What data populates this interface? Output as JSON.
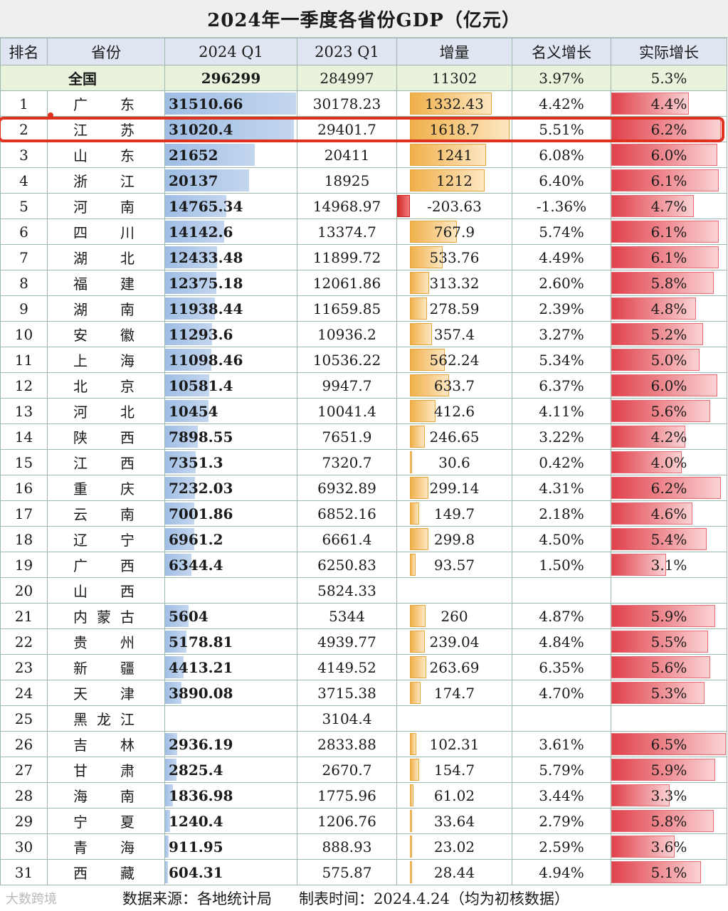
{
  "title": "2024年一季度各省份GDP（亿元）",
  "headers": [
    "排名",
    "省份",
    "2024 Q1",
    "2023 Q1",
    "增量",
    "名义增长",
    "实际增长"
  ],
  "national": {
    "name": "全国",
    "q2024": "296299",
    "q2023": "284997",
    "delta": "11302",
    "nominal": "3.97%",
    "real": "5.3%"
  },
  "rows": [
    {
      "rank": "1",
      "prov": "广东",
      "q2024": "31510.66",
      "q2023": "30178.23",
      "delta": "1332.43",
      "nominal": "4.42%",
      "real": "4.4%",
      "v": 31510.66,
      "d": 1332.43,
      "r": 4.4
    },
    {
      "rank": "2",
      "prov": "江苏",
      "q2024": "31020.4",
      "q2023": "29401.7",
      "delta": "1618.7",
      "nominal": "5.51%",
      "real": "6.2%",
      "v": 31020.4,
      "d": 1618.7,
      "r": 6.2
    },
    {
      "rank": "3",
      "prov": "山东",
      "q2024": "21652",
      "q2023": "20411",
      "delta": "1241",
      "nominal": "6.08%",
      "real": "6.0%",
      "v": 21652,
      "d": 1241,
      "r": 6.0
    },
    {
      "rank": "4",
      "prov": "浙江",
      "q2024": "20137",
      "q2023": "18925",
      "delta": "1212",
      "nominal": "6.40%",
      "real": "6.1%",
      "v": 20137,
      "d": 1212,
      "r": 6.1
    },
    {
      "rank": "5",
      "prov": "河南",
      "q2024": "14765.34",
      "q2023": "14968.97",
      "delta": "-203.63",
      "nominal": "-1.36%",
      "real": "4.7%",
      "v": 14765.34,
      "d": -203.63,
      "r": 4.7
    },
    {
      "rank": "6",
      "prov": "四川",
      "q2024": "14142.6",
      "q2023": "13374.7",
      "delta": "767.9",
      "nominal": "5.74%",
      "real": "6.1%",
      "v": 14142.6,
      "d": 767.9,
      "r": 6.1
    },
    {
      "rank": "7",
      "prov": "湖北",
      "q2024": "12433.48",
      "q2023": "11899.72",
      "delta": "533.76",
      "nominal": "4.49%",
      "real": "6.1%",
      "v": 12433.48,
      "d": 533.76,
      "r": 6.1
    },
    {
      "rank": "8",
      "prov": "福建",
      "q2024": "12375.18",
      "q2023": "12061.86",
      "delta": "313.32",
      "nominal": "2.60%",
      "real": "5.8%",
      "v": 12375.18,
      "d": 313.32,
      "r": 5.8
    },
    {
      "rank": "9",
      "prov": "湖南",
      "q2024": "11938.44",
      "q2023": "11659.85",
      "delta": "278.59",
      "nominal": "2.39%",
      "real": "4.8%",
      "v": 11938.44,
      "d": 278.59,
      "r": 4.8
    },
    {
      "rank": "10",
      "prov": "安徽",
      "q2024": "11293.6",
      "q2023": "10936.2",
      "delta": "357.4",
      "nominal": "3.27%",
      "real": "5.2%",
      "v": 11293.6,
      "d": 357.4,
      "r": 5.2
    },
    {
      "rank": "11",
      "prov": "上海",
      "q2024": "11098.46",
      "q2023": "10536.22",
      "delta": "562.24",
      "nominal": "5.34%",
      "real": "5.0%",
      "v": 11098.46,
      "d": 562.24,
      "r": 5.0
    },
    {
      "rank": "12",
      "prov": "北京",
      "q2024": "10581.4",
      "q2023": "9947.7",
      "delta": "633.7",
      "nominal": "6.37%",
      "real": "6.0%",
      "v": 10581.4,
      "d": 633.7,
      "r": 6.0
    },
    {
      "rank": "13",
      "prov": "河北",
      "q2024": "10454",
      "q2023": "10041.4",
      "delta": "412.6",
      "nominal": "4.11%",
      "real": "5.6%",
      "v": 10454,
      "d": 412.6,
      "r": 5.6
    },
    {
      "rank": "14",
      "prov": "陕西",
      "q2024": "7898.55",
      "q2023": "7651.9",
      "delta": "246.65",
      "nominal": "3.22%",
      "real": "4.2%",
      "v": 7898.55,
      "d": 246.65,
      "r": 4.2
    },
    {
      "rank": "15",
      "prov": "江西",
      "q2024": "7351.3",
      "q2023": "7320.7",
      "delta": "30.6",
      "nominal": "0.42%",
      "real": "4.0%",
      "v": 7351.3,
      "d": 30.6,
      "r": 4.0
    },
    {
      "rank": "16",
      "prov": "重庆",
      "q2024": "7232.03",
      "q2023": "6932.89",
      "delta": "299.14",
      "nominal": "4.31%",
      "real": "6.2%",
      "v": 7232.03,
      "d": 299.14,
      "r": 6.2
    },
    {
      "rank": "17",
      "prov": "云南",
      "q2024": "7001.86",
      "q2023": "6852.16",
      "delta": "149.7",
      "nominal": "2.18%",
      "real": "4.6%",
      "v": 7001.86,
      "d": 149.7,
      "r": 4.6
    },
    {
      "rank": "18",
      "prov": "辽宁",
      "q2024": "6961.2",
      "q2023": "6661.4",
      "delta": "299.8",
      "nominal": "4.50%",
      "real": "5.4%",
      "v": 6961.2,
      "d": 299.8,
      "r": 5.4
    },
    {
      "rank": "19",
      "prov": "广西",
      "q2024": "6344.4",
      "q2023": "6250.83",
      "delta": "93.57",
      "nominal": "1.50%",
      "real": "3.1%",
      "v": 6344.4,
      "d": 93.57,
      "r": 3.1
    },
    {
      "rank": "20",
      "prov": "山西",
      "q2024": "",
      "q2023": "5824.33",
      "delta": "",
      "nominal": "",
      "real": "",
      "v": null,
      "d": null,
      "r": null
    },
    {
      "rank": "21",
      "prov": "内蒙古",
      "q2024": "5604",
      "q2023": "5344",
      "delta": "260",
      "nominal": "4.87%",
      "real": "5.9%",
      "v": 5604,
      "d": 260,
      "r": 5.9
    },
    {
      "rank": "22",
      "prov": "贵州",
      "q2024": "5178.81",
      "q2023": "4939.77",
      "delta": "239.04",
      "nominal": "4.84%",
      "real": "5.5%",
      "v": 5178.81,
      "d": 239.04,
      "r": 5.5
    },
    {
      "rank": "23",
      "prov": "新疆",
      "q2024": "4413.21",
      "q2023": "4149.52",
      "delta": "263.69",
      "nominal": "6.35%",
      "real": "5.6%",
      "v": 4413.21,
      "d": 263.69,
      "r": 5.6
    },
    {
      "rank": "24",
      "prov": "天津",
      "q2024": "3890.08",
      "q2023": "3715.38",
      "delta": "174.7",
      "nominal": "4.70%",
      "real": "5.3%",
      "v": 3890.08,
      "d": 174.7,
      "r": 5.3
    },
    {
      "rank": "25",
      "prov": "黑龙江",
      "q2024": "",
      "q2023": "3104.4",
      "delta": "",
      "nominal": "",
      "real": "",
      "v": null,
      "d": null,
      "r": null
    },
    {
      "rank": "26",
      "prov": "吉林",
      "q2024": "2936.19",
      "q2023": "2833.88",
      "delta": "102.31",
      "nominal": "3.61%",
      "real": "6.5%",
      "v": 2936.19,
      "d": 102.31,
      "r": 6.5
    },
    {
      "rank": "27",
      "prov": "甘肃",
      "q2024": "2825.4",
      "q2023": "2670.7",
      "delta": "154.7",
      "nominal": "5.79%",
      "real": "5.9%",
      "v": 2825.4,
      "d": 154.7,
      "r": 5.9
    },
    {
      "rank": "28",
      "prov": "海南",
      "q2024": "1836.98",
      "q2023": "1775.96",
      "delta": "61.02",
      "nominal": "3.44%",
      "real": "3.3%",
      "v": 1836.98,
      "d": 61.02,
      "r": 3.3
    },
    {
      "rank": "29",
      "prov": "宁夏",
      "q2024": "1240.4",
      "q2023": "1206.76",
      "delta": "33.64",
      "nominal": "2.79%",
      "real": "5.8%",
      "v": 1240.4,
      "d": 33.64,
      "r": 5.8
    },
    {
      "rank": "30",
      "prov": "青海",
      "q2024": "911.95",
      "q2023": "888.93",
      "delta": "23.02",
      "nominal": "2.59%",
      "real": "3.6%",
      "v": 911.95,
      "d": 23.02,
      "r": 3.6
    },
    {
      "rank": "31",
      "prov": "西藏",
      "q2024": "604.31",
      "q2023": "575.87",
      "delta": "28.44",
      "nominal": "4.94%",
      "real": "5.1%",
      "v": 604.31,
      "d": 28.44,
      "r": 5.1
    }
  ],
  "footer": {
    "logo": "大数跨境",
    "source": "数据来源：各地统计局",
    "time": "制表时间：2024.4.24（均为初核数据）"
  },
  "colors": {
    "blue_bar": "#9fbde4",
    "orange_bar": "#f0b04a",
    "red_bar": "#e0414b",
    "highlight": "#e0301e"
  }
}
